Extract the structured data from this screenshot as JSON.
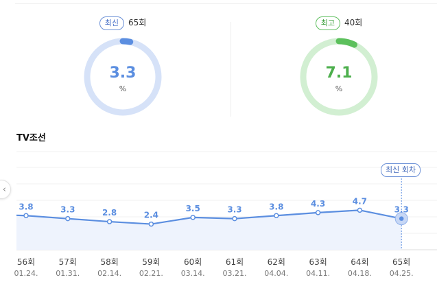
{
  "latest": {
    "badge": "최신",
    "episode": "65회",
    "value": "3.3",
    "unit": "%",
    "ratio": 0.033
  },
  "best": {
    "badge": "최고",
    "episode": "40회",
    "value": "7.1",
    "unit": "%",
    "ratio": 0.071
  },
  "channel": "TV조선",
  "latest_tag": "최신 회차",
  "colors": {
    "blue": "#5b8ee0",
    "blue_light": "#d6e2f8",
    "green": "#5cc05c",
    "green_light": "#d2efd2",
    "fill": "#eef3fd"
  },
  "chart_data": {
    "type": "line",
    "categories": [
      "56회",
      "57회",
      "58회",
      "59회",
      "60회",
      "61회",
      "62회",
      "63회",
      "64회",
      "65회"
    ],
    "dates": [
      "01.24.",
      "01.31.",
      "02.14.",
      "02.21.",
      "03.14.",
      "03.21.",
      "04.04.",
      "04.11.",
      "04.18.",
      "04.25."
    ],
    "values": [
      3.8,
      3.3,
      2.8,
      2.4,
      3.5,
      3.3,
      3.8,
      4.3,
      4.7,
      3.3
    ],
    "labels": [
      "3.8",
      "3.3",
      "2.8",
      "2.4",
      "3.5",
      "3.3",
      "3.8",
      "4.3",
      "4.7",
      "3.3"
    ]
  }
}
